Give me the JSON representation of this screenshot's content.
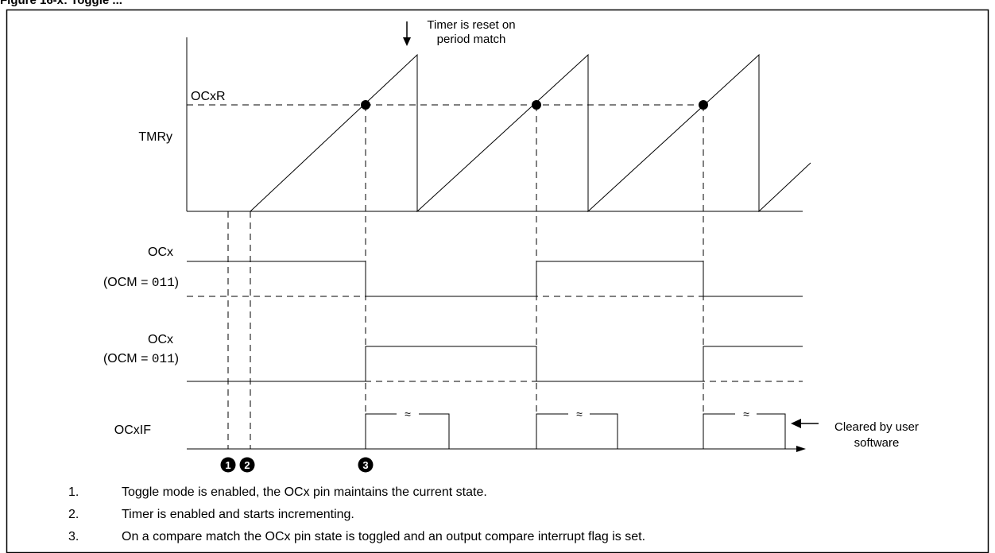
{
  "figure_title": "Figure 16-x: Toggle ...",
  "frame_color": "#000000",
  "annotation": {
    "line1": "Timer is reset on",
    "line2": "period match",
    "arrow": "down-arrow-icon"
  },
  "labels": {
    "ocxr": "OCxR",
    "tmry": "TMRy",
    "ocx_a": "OCx",
    "ocm_a_prefix": "(OCM = ",
    "ocm_a_value": "011",
    "ocm_a_suffix": ")",
    "ocx_b": "OCx",
    "ocm_b_prefix": "(OCM = ",
    "ocm_b_value": "011",
    "ocm_b_suffix": ")",
    "ocxif": "OCxIF",
    "cleared_line1": "Cleared by user",
    "cleared_line2": "software",
    "break_symbol": "≈"
  },
  "markers": [
    "1",
    "2",
    "3"
  ],
  "notes": [
    {
      "num": "1.",
      "text": "Toggle mode is enabled, the OCx pin maintains the current state."
    },
    {
      "num": "2.",
      "text": "Timer is enabled and starts incrementing."
    },
    {
      "num": "3.",
      "text": "On a compare match the OCx pin state is toggled and an output compare interrupt flag is set."
    }
  ]
}
